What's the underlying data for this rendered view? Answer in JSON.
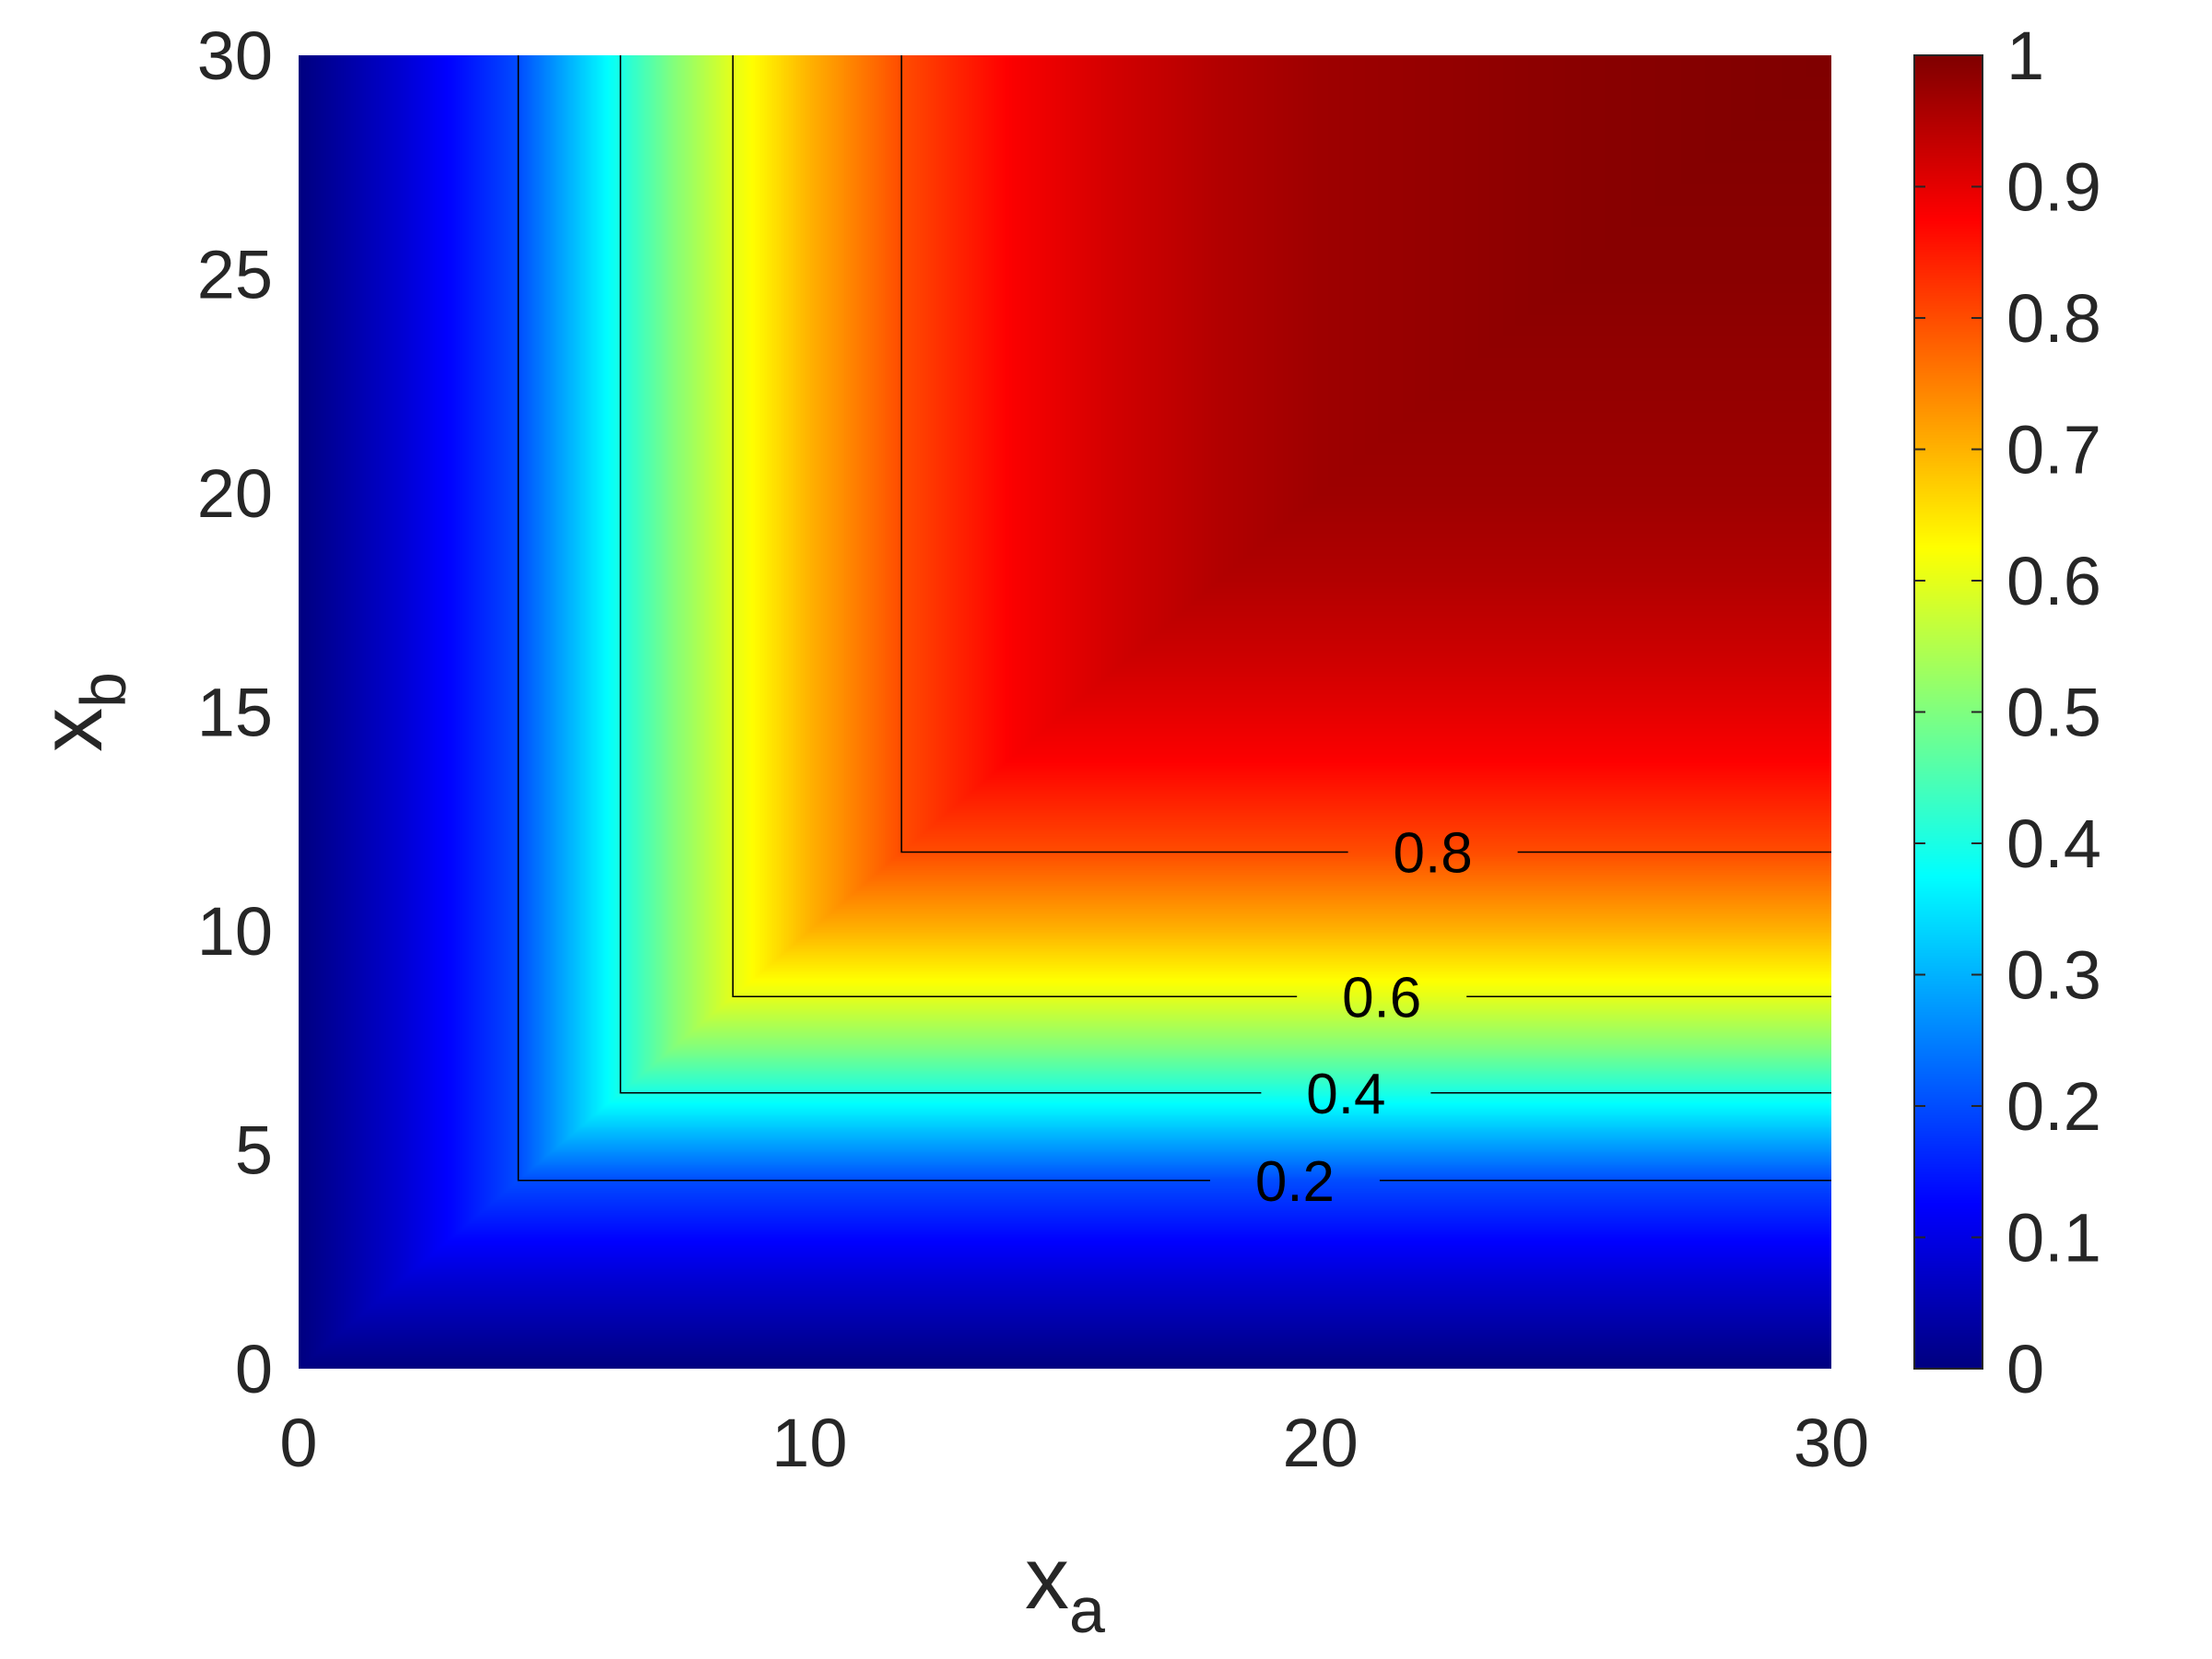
{
  "chart_data": {
    "type": "heatmap",
    "title": "",
    "colormap": "jet",
    "x": {
      "label": "x",
      "label_subscript": "a",
      "lim": [
        0,
        30
      ],
      "ticks": [
        0,
        10,
        20,
        30
      ],
      "tick_labels": [
        "0",
        "10",
        "20",
        "30"
      ]
    },
    "y": {
      "label": "x",
      "label_subscript": "b",
      "lim": [
        0,
        30
      ],
      "ticks": [
        0,
        5,
        10,
        15,
        20,
        25,
        30
      ],
      "tick_labels": [
        "0",
        "5",
        "10",
        "15",
        "20",
        "25",
        "30"
      ]
    },
    "colorbar": {
      "lim": [
        0,
        1
      ],
      "ticks": [
        0,
        0.1,
        0.2,
        0.3,
        0.4,
        0.5,
        0.6,
        0.7,
        0.8,
        0.9,
        1
      ],
      "tick_labels": [
        "0",
        "0.1",
        "0.2",
        "0.3",
        "0.4",
        "0.5",
        "0.6",
        "0.7",
        "0.8",
        "0.9",
        "1"
      ]
    },
    "surface": {
      "description": "z = f(min(x_a, x_b))",
      "profile_min_x": [
        0,
        1,
        2,
        3,
        4.3,
        5.3,
        6.3,
        7.3,
        8.5,
        10,
        11.8,
        14,
        16,
        18,
        20,
        25,
        30
      ],
      "profile_z": [
        0.0,
        0.04,
        0.08,
        0.13,
        0.2,
        0.3,
        0.4,
        0.5,
        0.6,
        0.7,
        0.8,
        0.88,
        0.92,
        0.95,
        0.97,
        0.99,
        1.0
      ]
    },
    "contours": [
      {
        "level": 0.2,
        "label": "0.2",
        "corner": 4.3,
        "label_x": 19.5
      },
      {
        "level": 0.4,
        "label": "0.4",
        "corner": 6.3,
        "label_x": 20.5
      },
      {
        "level": 0.6,
        "label": "0.6",
        "corner": 8.5,
        "label_x": 21.2
      },
      {
        "level": 0.8,
        "label": "0.8",
        "corner": 11.8,
        "label_x": 22.2
      }
    ]
  }
}
